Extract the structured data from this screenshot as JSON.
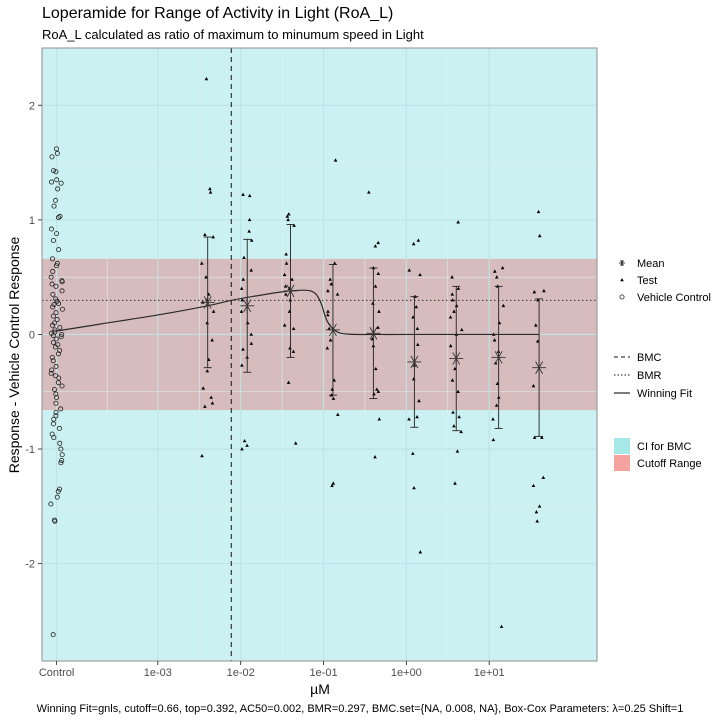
{
  "chart_data": {
    "type": "scatter",
    "title": "Loperamide for Range of Activity in Light (RoA_L)",
    "subtitle": "RoA_L calculated as ratio of maximum to minumum speed in Light",
    "xlabel": "µM",
    "ylabel": "Response - Vehicle Control Response",
    "caption": "Winning Fit=gnls, cutoff=0.66, top=0.392, AC50=0.002, BMR=0.297, BMC.set={NA, 0.008, NA}, Box-Cox Parameters: λ=0.25 Shift=1",
    "x_scale": "log10",
    "x_ticks": [
      {
        "value": 6e-05,
        "label": "Control"
      },
      {
        "value": 0.001,
        "label": "1e-03"
      },
      {
        "value": 0.01,
        "label": "1e-02"
      },
      {
        "value": 0.1,
        "label": "1e-01"
      },
      {
        "value": 1,
        "label": "1e+00"
      },
      {
        "value": 10,
        "label": "1e+01"
      }
    ],
    "xlim": [
      4e-05,
      200
    ],
    "y_ticks": [
      -2,
      -1,
      0,
      1,
      2
    ],
    "ylim": [
      -2.85,
      2.5
    ],
    "ci_for_bmc": [
      4e-05,
      200
    ],
    "cutoff_range": [
      -0.66,
      0.66
    ],
    "bmc": 0.0077,
    "bmr": 0.297,
    "control_x": 6e-05,
    "control_values": [
      1.62,
      1.58,
      1.55,
      1.43,
      1.42,
      1.35,
      1.33,
      1.32,
      1.27,
      1.17,
      1.12,
      1.03,
      1.02,
      0.92,
      0.88,
      0.82,
      0.74,
      0.66,
      0.62,
      0.6,
      0.55,
      0.5,
      0.47,
      0.46,
      0.44,
      0.42,
      0.38,
      0.35,
      0.31,
      0.29,
      0.27,
      0.26,
      0.24,
      0.22,
      0.19,
      0.16,
      0.13,
      0.1,
      0.08,
      0.06,
      0.04,
      0.02,
      0.01,
      0.0,
      -0.01,
      -0.02,
      -0.04,
      -0.07,
      -0.09,
      -0.11,
      -0.14,
      -0.17,
      -0.2,
      -0.23,
      -0.28,
      -0.31,
      -0.34,
      -0.36,
      -0.38,
      -0.42,
      -0.45,
      -0.48,
      -0.52,
      -0.55,
      -0.6,
      -0.65,
      -0.68,
      -0.71,
      -0.74,
      -0.78,
      -0.82,
      -0.87,
      -0.9,
      -0.95,
      -1.0,
      -1.05,
      -1.1,
      -1.12,
      -1.35,
      -1.37,
      -1.42,
      -1.48,
      -1.62,
      -1.63,
      -2.62
    ],
    "test_groups": [
      {
        "conc": 0.004,
        "mean": 0.28,
        "sd": 0.57,
        "values": [
          2.23,
          1.27,
          1.24,
          0.87,
          0.85,
          0.62,
          0.5,
          0.35,
          0.3,
          0.28,
          0.2,
          0.1,
          -0.05,
          -0.22,
          -0.32,
          -0.47,
          -0.55,
          -0.6,
          -0.63,
          -1.06
        ]
      },
      {
        "conc": 0.012,
        "mean": 0.25,
        "sd": 0.58,
        "values": [
          1.22,
          1.21,
          1.0,
          0.9,
          0.82,
          0.67,
          0.56,
          0.48,
          0.4,
          0.3,
          0.2,
          0.1,
          0.0,
          -0.08,
          -0.13,
          -0.2,
          -0.27,
          -0.93,
          -0.97,
          -1.0
        ]
      },
      {
        "conc": 0.04,
        "mean": 0.38,
        "sd": 0.58,
        "values": [
          1.05,
          1.03,
          1.0,
          0.95,
          0.7,
          0.62,
          0.52,
          0.48,
          0.42,
          0.4,
          0.35,
          0.3,
          0.2,
          0.08,
          0.05,
          -0.12,
          -0.15,
          -0.42,
          -0.95
        ]
      },
      {
        "conc": 0.13,
        "mean": 0.04,
        "sd": 0.57,
        "values": [
          1.52,
          0.62,
          0.48,
          0.44,
          0.38,
          0.35,
          0.2,
          0.17,
          0.05,
          -0.05,
          -0.12,
          -0.4,
          -0.48,
          -0.53,
          -0.56,
          -0.7,
          -1.3,
          -1.32
        ]
      },
      {
        "conc": 0.4,
        "mean": 0.01,
        "sd": 0.57,
        "values": [
          1.24,
          0.8,
          0.77,
          0.58,
          0.53,
          0.42,
          0.27,
          0.2,
          0.06,
          -0.04,
          -0.1,
          -0.3,
          -0.48,
          -0.5,
          -0.52,
          -0.74,
          -1.07
        ]
      },
      {
        "conc": 1.25,
        "mean": -0.24,
        "sd": 0.57,
        "values": [
          0.82,
          0.79,
          0.56,
          0.52,
          0.33,
          0.24,
          0.15,
          0.05,
          -0.09,
          -0.27,
          -0.39,
          -0.58,
          -0.72,
          -0.74,
          -1.04,
          -1.34,
          -1.9
        ]
      },
      {
        "conc": 4,
        "mean": -0.21,
        "sd": 0.63,
        "values": [
          0.98,
          0.5,
          0.4,
          0.35,
          0.3,
          0.25,
          0.2,
          0.15,
          0.04,
          0.0,
          -0.1,
          -0.3,
          -0.4,
          -0.5,
          -0.68,
          -0.72,
          -0.8,
          -0.85,
          -1.02,
          -1.3
        ]
      },
      {
        "conc": 13,
        "mean": -0.2,
        "sd": 0.62,
        "values": [
          0.58,
          0.55,
          0.5,
          0.42,
          0.25,
          0.1,
          0.0,
          -0.05,
          -0.15,
          -0.25,
          -0.43,
          -0.55,
          -0.62,
          -0.74,
          -0.92,
          -2.55
        ]
      },
      {
        "conc": 40,
        "mean": -0.29,
        "sd": 0.6,
        "values": [
          1.07,
          0.86,
          0.38,
          0.37,
          0.3,
          0.08,
          -0.06,
          -0.45,
          -0.9,
          -0.9,
          -1.25,
          -1.32,
          -1.5,
          -1.55,
          -1.63
        ]
      }
    ],
    "fit_curve": [
      [
        6e-05,
        0.03
      ],
      [
        0.0002,
        0.09
      ],
      [
        0.001,
        0.17
      ],
      [
        0.004,
        0.25
      ],
      [
        0.008,
        0.3
      ],
      [
        0.02,
        0.35
      ],
      [
        0.04,
        0.38
      ],
      [
        0.07,
        0.38
      ],
      [
        0.09,
        0.3
      ],
      [
        0.11,
        0.12
      ],
      [
        0.14,
        0.03
      ],
      [
        0.2,
        0.003
      ],
      [
        0.5,
        0.0
      ],
      [
        1,
        0.0
      ],
      [
        10,
        0.0
      ],
      [
        40,
        0.0
      ]
    ],
    "legend": {
      "points": [
        {
          "symbol": "asterisk",
          "label": "Mean"
        },
        {
          "symbol": "triangle",
          "label": "Test"
        },
        {
          "symbol": "open-circle",
          "label": "Vehicle Control"
        }
      ],
      "lines": [
        {
          "style": "dashed",
          "label": "BMC"
        },
        {
          "style": "dotted",
          "label": "BMR"
        },
        {
          "style": "solid",
          "label": "Winning Fit"
        }
      ],
      "fills": [
        {
          "color": "#a6e7e8",
          "label": "CI for BMC"
        },
        {
          "color": "#f6a3a0",
          "label": "Cutoff Range"
        }
      ]
    },
    "colors": {
      "ci_fill": "#ccf1f2",
      "cutoff_fill": "#d7bcbd",
      "grid_major": "#bfe3e6",
      "grid_minor": "#ddf1f2",
      "border": "#8f8f8f"
    }
  }
}
